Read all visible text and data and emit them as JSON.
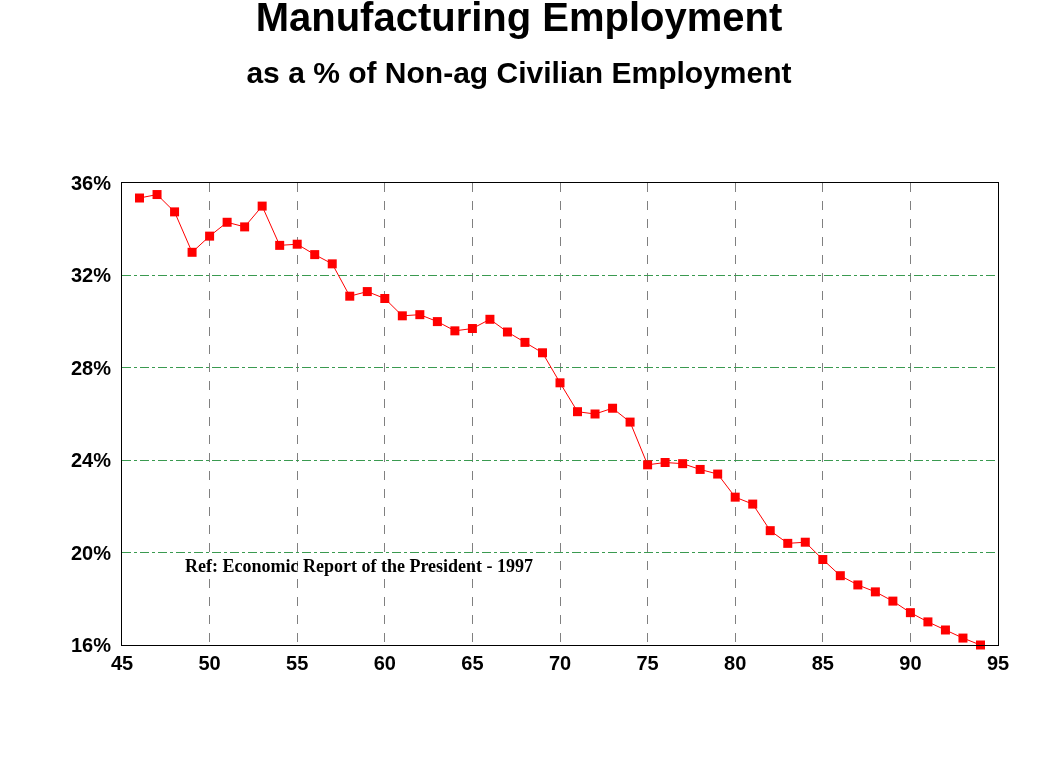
{
  "chart_data": {
    "type": "line",
    "title": "Manufacturing Employment",
    "subtitle": "as a % of Non-ag Civilian Employment",
    "x": [
      46,
      47,
      48,
      49,
      50,
      51,
      52,
      53,
      54,
      55,
      56,
      57,
      58,
      59,
      60,
      61,
      62,
      63,
      64,
      65,
      66,
      67,
      68,
      69,
      70,
      71,
      72,
      73,
      74,
      75,
      76,
      77,
      78,
      79,
      80,
      81,
      82,
      83,
      84,
      85,
      86,
      87,
      88,
      89,
      90,
      91,
      92,
      93,
      94
    ],
    "series": [
      {
        "color": "#ff0000",
        "values": [
          35.35,
          35.5,
          34.75,
          33.0,
          33.7,
          34.3,
          34.1,
          35.0,
          33.3,
          33.35,
          32.9,
          32.5,
          31.1,
          31.3,
          31.0,
          30.25,
          30.3,
          30.0,
          29.6,
          29.7,
          30.1,
          29.55,
          29.1,
          28.65,
          27.35,
          26.1,
          26.0,
          26.25,
          25.65,
          23.8,
          23.9,
          23.85,
          23.6,
          23.4,
          22.4,
          22.1,
          20.95,
          20.4,
          20.45,
          19.7,
          19.0,
          18.6,
          18.3,
          17.9,
          17.4,
          17.0,
          16.65,
          16.3,
          16.0
        ]
      }
    ],
    "xlim": [
      45,
      95
    ],
    "xticks": [
      45,
      50,
      55,
      60,
      65,
      70,
      75,
      80,
      85,
      90,
      95
    ],
    "ylim": [
      16,
      36
    ],
    "yticks": [
      {
        "value": 16,
        "label": "16%"
      },
      {
        "value": 20,
        "label": "20%"
      },
      {
        "value": 24,
        "label": "24%"
      },
      {
        "value": 28,
        "label": "28%"
      },
      {
        "value": 32,
        "label": "32%"
      },
      {
        "value": 36,
        "label": "36%"
      }
    ],
    "grid": true,
    "marker": "square",
    "line_style": "solid",
    "annotations": [
      "Ref: Economic Report of the President - 1997"
    ]
  }
}
